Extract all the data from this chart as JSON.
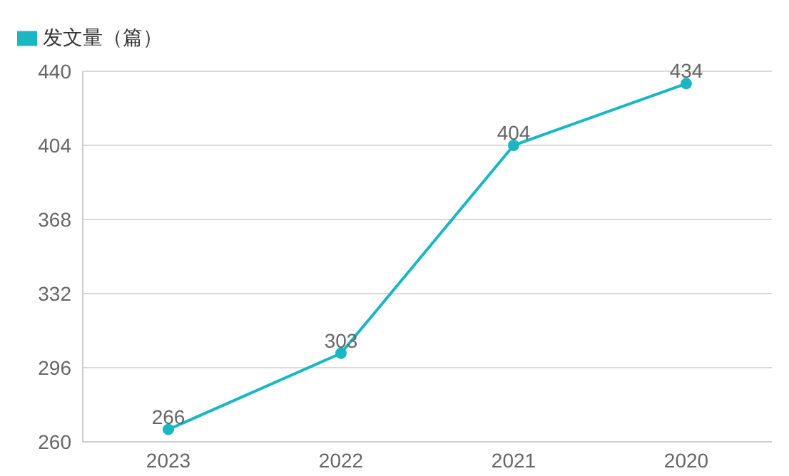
{
  "chart_data": {
    "type": "line",
    "categories": [
      "2023",
      "2022",
      "2021",
      "2020"
    ],
    "series": [
      {
        "name": "发文量（篇）",
        "color": "#1ab7c3",
        "values": [
          266,
          303,
          404,
          434
        ]
      }
    ],
    "ylim": [
      260,
      440
    ],
    "yticks": [
      260,
      296,
      332,
      368,
      404,
      440
    ],
    "grid": "y",
    "legend": "top left",
    "marker": "circle",
    "line_style": "solid",
    "data_labels": true
  }
}
